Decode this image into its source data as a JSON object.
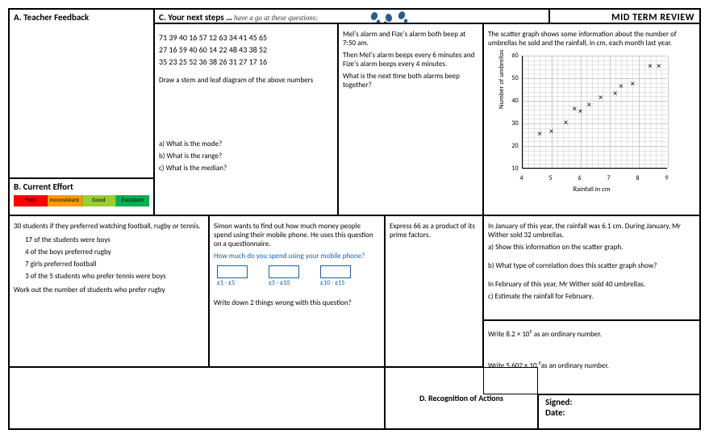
{
  "header": {
    "mid_title": "MID TERM REVIEW"
  },
  "A": {
    "title": "A. Teacher Feedback"
  },
  "B": {
    "title": "B. Current Effort",
    "levels": [
      {
        "label": "Poor",
        "color": "#ff0000"
      },
      {
        "label": "Inconsistent",
        "color": "#ff9a00"
      },
      {
        "label": "Good",
        "color": "#9acd32"
      },
      {
        "label": "Excellent",
        "color": "#00b050"
      }
    ]
  },
  "C": {
    "title": "C. Your next steps …",
    "subtitle": "have a go at these questions:"
  },
  "stemleaf": {
    "row1": "71  39  40  16  57  12   63  34  41  45  65",
    "row2": "27  16  59  40  60  14   22  48  43  38  52",
    "row3": "35  23  25  52  36  38   26  31  27  17  16",
    "instr": "Draw a stem and leaf diagram of the above numbers",
    "qa": "a) What is the mode?",
    "qb": "b) What is the range?",
    "qc": "c) What is the median?"
  },
  "alarms": {
    "l1": "Mel's alarm and Fize's alarm both beep at 7:50 am.",
    "l2": "Then Mel's alarm beeps every 6 minutes and Fize's alarm beeps every 4 minutes.",
    "l3": "What is the next time both alarms beep together?"
  },
  "scatter": {
    "intro": "The scatter graph shows some information about the number of umbrellas he sold and the rainfall, in cm, each month last year.",
    "ylabel": "Number of umbrellas",
    "xlabel": "Rainfall in cm",
    "xmin": 4,
    "xmax": 9,
    "xstep": 1,
    "ymin": 10,
    "ymax": 60,
    "ystep": 10,
    "grid_color": "#c9c9c9",
    "point_marker": "×",
    "points": [
      [
        4.6,
        25
      ],
      [
        5.0,
        26
      ],
      [
        5.5,
        30
      ],
      [
        5.8,
        36
      ],
      [
        6.0,
        35
      ],
      [
        6.3,
        38
      ],
      [
        6.7,
        41
      ],
      [
        7.2,
        43
      ],
      [
        7.4,
        46
      ],
      [
        7.8,
        47
      ],
      [
        8.4,
        55
      ],
      [
        8.7,
        55
      ]
    ]
  },
  "scatterQ": {
    "l1": "In January of this year, the rainfall was 6.1 cm. During January, Mr Wither sold 32 umbrellas.",
    "la": "a) Show this information on the scatter graph.",
    "lb": "b) What type of correlation does this scatter graph show?",
    "l2": "In February of this year, Mr Wither sold 40 umbrellas.",
    "lc": "c) Estimate the rainfall for February."
  },
  "students": {
    "l1": "30 students if they preferred watching football, rugby or tennis.",
    "b1": "17 of the students were boys",
    "b2": "4 of the boys preferred rugby",
    "b3": "7 girls preferred football",
    "b4": "3 of the 5 students who prefer tennis were boys",
    "l2": "Work out the number of students who prefer rugby"
  },
  "phone": {
    "l1": "Simon wants to find out how much money people spend using their mobile phone. He uses this question on a questionnaire.",
    "l2": "How much do you spend using your mobile phone?",
    "amts": [
      "£1 - £5",
      "£5 - £10",
      "£10 - £15"
    ],
    "l3": "Write down 2 things wrong with this question?"
  },
  "prime": {
    "l1": "Express 66 as a product of its prime factors."
  },
  "standard": {
    "q1a": "Write 8.2 × 10",
    "q1exp": "5",
    "q1b": " as an ordinary number.",
    "q2a": "Write 5.602 × 10",
    "q2exp": "-5",
    "q2b": "as an ordinary number."
  },
  "recog": {
    "title": "D. Recognition of Actions"
  },
  "sign": {
    "signed": "Signed:",
    "date": "Date:"
  }
}
